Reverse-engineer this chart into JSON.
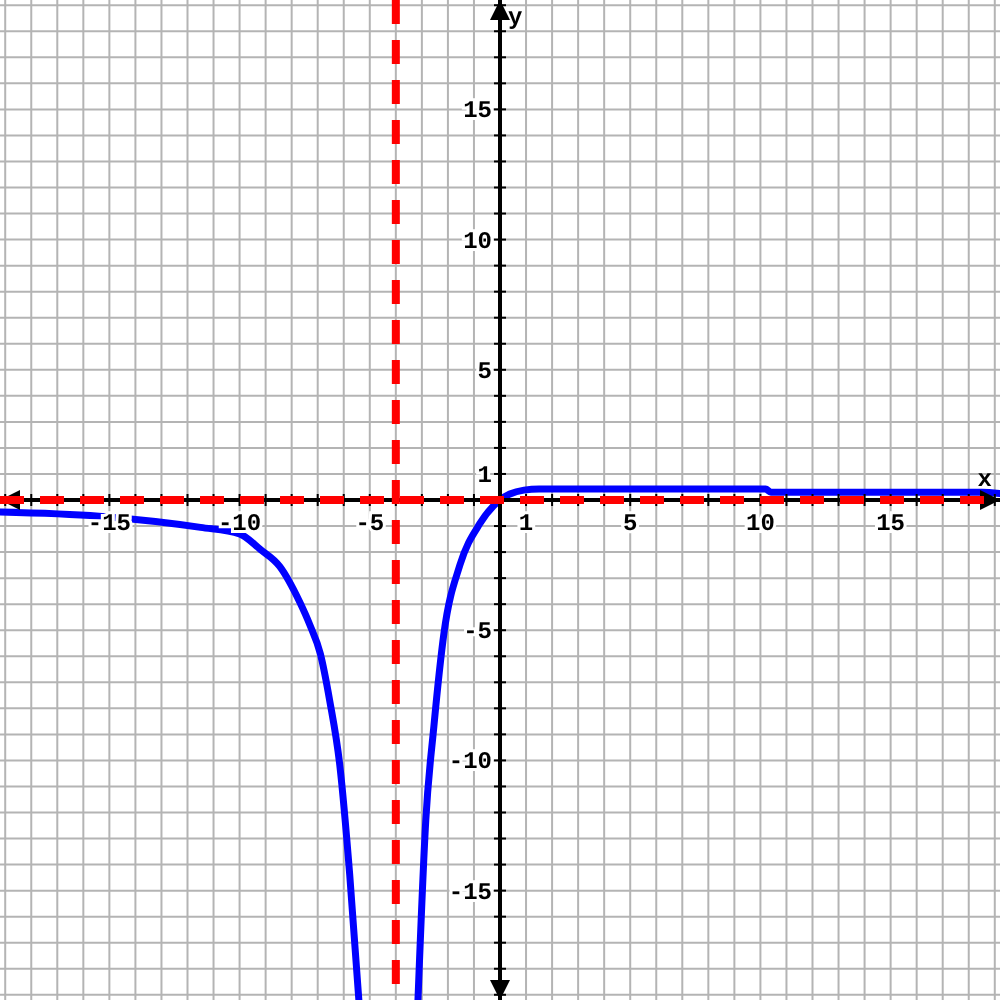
{
  "chart_data": {
    "type": "line",
    "xlabel": "x",
    "ylabel": "y",
    "xlim": [
      -19.2,
      19.2
    ],
    "ylim": [
      -19.2,
      19.2
    ],
    "xticks": [
      {
        "value": -19,
        "label": null
      },
      {
        "value": -18,
        "label": null
      },
      {
        "value": -17,
        "label": null
      },
      {
        "value": -16,
        "label": null
      },
      -15,
      {
        "value": -14,
        "label": null
      },
      {
        "value": -13,
        "label": null
      },
      {
        "value": -12,
        "label": null
      },
      {
        "value": -11,
        "label": null
      },
      -10,
      {
        "value": -9,
        "label": null
      },
      {
        "value": -8,
        "label": null
      },
      {
        "value": -7,
        "label": null
      },
      {
        "value": -6,
        "label": null
      },
      -5,
      {
        "value": -4,
        "label": null
      },
      {
        "value": -3,
        "label": null
      },
      {
        "value": -2,
        "label": null
      },
      {
        "value": -1,
        "label": null
      },
      1,
      {
        "value": 2,
        "label": null
      },
      {
        "value": 3,
        "label": null
      },
      {
        "value": 4,
        "label": null
      },
      5,
      {
        "value": 6,
        "label": null
      },
      {
        "value": 7,
        "label": null
      },
      {
        "value": 8,
        "label": null
      },
      {
        "value": 9,
        "label": null
      },
      10,
      {
        "value": 11,
        "label": null
      },
      {
        "value": 12,
        "label": null
      },
      {
        "value": 13,
        "label": null
      },
      {
        "value": 14,
        "label": null
      },
      15,
      {
        "value": 16,
        "label": null
      },
      {
        "value": 17,
        "label": null
      },
      {
        "value": 18,
        "label": null
      },
      {
        "value": 19,
        "label": null
      }
    ],
    "yticks": [
      {
        "value": -19,
        "label": null
      },
      {
        "value": -18,
        "label": null
      },
      {
        "value": -17,
        "label": null
      },
      {
        "value": -16,
        "label": null
      },
      -15,
      {
        "value": -14,
        "label": null
      },
      {
        "value": -13,
        "label": null
      },
      {
        "value": -12,
        "label": null
      },
      {
        "value": -11,
        "label": null
      },
      -10,
      {
        "value": -9,
        "label": null
      },
      {
        "value": -8,
        "label": null
      },
      {
        "value": -7,
        "label": null
      },
      {
        "value": -6,
        "label": null
      },
      -5,
      {
        "value": -4,
        "label": null
      },
      {
        "value": -3,
        "label": null
      },
      {
        "value": -2,
        "label": null
      },
      {
        "value": -1,
        "label": null
      },
      1,
      {
        "value": 2,
        "label": null
      },
      {
        "value": 3,
        "label": null
      },
      {
        "value": 4,
        "label": null
      },
      5,
      {
        "value": 6,
        "label": null
      },
      {
        "value": 7,
        "label": null
      },
      {
        "value": 8,
        "label": null
      },
      {
        "value": 9,
        "label": null
      },
      10,
      {
        "value": 11,
        "label": null
      },
      {
        "value": 12,
        "label": null
      },
      {
        "value": 13,
        "label": null
      },
      {
        "value": 14,
        "label": null
      },
      15,
      {
        "value": 16,
        "label": null
      },
      {
        "value": 17,
        "label": null
      },
      {
        "value": 18,
        "label": null
      },
      {
        "value": 19,
        "label": null
      }
    ],
    "grid": true,
    "line_style": "solid",
    "marker": "none",
    "series": [
      {
        "color": "#0000ff",
        "x": [
          -19.2,
          -15.4,
          -11.5,
          -10,
          -9.2,
          -8.46,
          -7.7,
          -7.3,
          -6.9,
          -6.54,
          -6.15,
          -5.77,
          -5.42
        ],
        "values": [
          -0.46,
          -0.62,
          -1.05,
          -1.3,
          -1.9,
          -2.55,
          -3.9,
          -4.8,
          -5.9,
          -7.7,
          -10.2,
          -14.4,
          -19.2
        ]
      },
      {
        "color": "#0000ff",
        "x": [
          -3.15,
          -2.85,
          -2.54,
          -2.15,
          -1.54,
          -0.77,
          0,
          0.38,
          0.92,
          1.5,
          10.2,
          10.4,
          18.5,
          19.2
        ],
        "values": [
          -19.2,
          -12.3,
          -8.7,
          -5.1,
          -2.5,
          -0.9,
          0,
          0.23,
          0.38,
          0.42,
          0.42,
          0.3,
          0.3,
          0.25
        ]
      }
    ],
    "ref_lines": [
      {
        "axis": "x",
        "value": -4,
        "color": "#ff0000",
        "line_style": "dashed"
      },
      {
        "axis": "y",
        "value": 0,
        "color": "#ff0000",
        "line_style": "dashed"
      }
    ]
  }
}
